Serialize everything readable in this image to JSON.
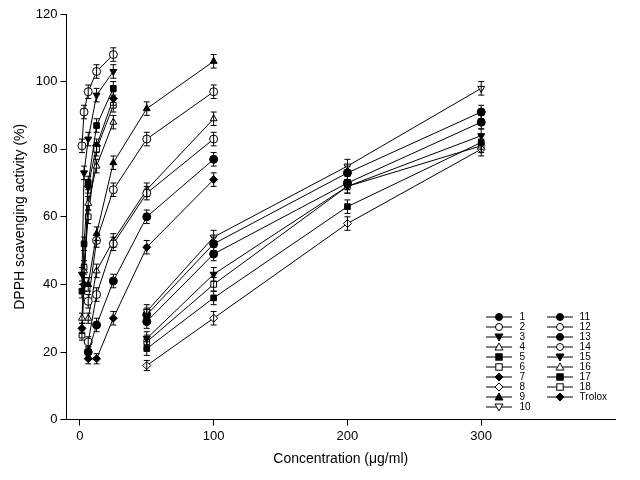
{
  "chart_data": {
    "type": "line",
    "x_label": "Concentration (μg/ml)",
    "y_label": "DPPH scavenging activity (%)",
    "xlim": [
      -10,
      400
    ],
    "xticks": [
      0,
      100,
      200,
      300
    ],
    "ylim": [
      0,
      120
    ],
    "yticks": [
      0,
      20,
      40,
      60,
      80,
      100,
      120
    ],
    "grid": false,
    "legend": "lower right",
    "series": [
      {
        "name": "1",
        "color": "#000000",
        "marker": "circle",
        "x": [
          6.25,
          12.5,
          25,
          50,
          100
        ],
        "values": [
          20,
          28,
          41,
          60,
          77
        ],
        "errors": [
          1.5,
          2,
          2,
          2,
          2
        ]
      },
      {
        "name": "2",
        "color": "#000000",
        "marker": "circle_open",
        "x": [
          1.5625,
          3.125,
          6.25,
          12.5,
          25
        ],
        "values": [
          81,
          91,
          97,
          103,
          108
        ],
        "errors": [
          2,
          2,
          2,
          2,
          2
        ]
      },
      {
        "name": "3",
        "color": "#000000",
        "marker": "triangle-down",
        "x": [
          1.5625,
          3.125,
          6.25,
          12.5,
          25
        ],
        "values": [
          43,
          73,
          83,
          96,
          103
        ],
        "errors": [
          2,
          2,
          2,
          2,
          2
        ]
      },
      {
        "name": "4",
        "color": "#000000",
        "marker": "triangle-up_open",
        "x": [
          1.5625,
          3.125,
          6.25,
          12.5,
          25
        ],
        "values": [
          30,
          44,
          64,
          75,
          88
        ],
        "errors": [
          1.5,
          2,
          2,
          2,
          2
        ]
      },
      {
        "name": "5",
        "color": "#000000",
        "marker": "square",
        "x": [
          1.5625,
          3.125,
          6.25,
          12.5,
          25
        ],
        "values": [
          38,
          52,
          70,
          87,
          98
        ],
        "errors": [
          2,
          2,
          2,
          2,
          2
        ]
      },
      {
        "name": "6",
        "color": "#000000",
        "marker": "square_open",
        "x": [
          1.5625,
          3.125,
          6.25,
          12.5,
          25
        ],
        "values": [
          25,
          45,
          60,
          80,
          93
        ],
        "errors": [
          1.5,
          2,
          2,
          2,
          2
        ]
      },
      {
        "name": "7",
        "color": "#000000",
        "marker": "diamond",
        "x": [
          1.5625,
          3.125,
          6.25,
          12.5,
          25
        ],
        "values": [
          27,
          40,
          69,
          81,
          95
        ],
        "errors": [
          1.5,
          2,
          2,
          2,
          2
        ]
      },
      {
        "name": "8",
        "color": "#000000",
        "marker": "diamond_open",
        "x": [
          50,
          100,
          200,
          300
        ],
        "values": [
          16,
          30,
          58,
          80
        ],
        "errors": [
          1.5,
          2,
          2,
          2
        ]
      },
      {
        "name": "9",
        "color": "#000000",
        "marker": "triangle-up",
        "x": [
          6.25,
          12.5,
          25,
          50,
          100
        ],
        "values": [
          40,
          55,
          76,
          92,
          106
        ],
        "errors": [
          2,
          2,
          2,
          2,
          2
        ]
      },
      {
        "name": "10",
        "color": "#000000",
        "marker": "triangle-down_open",
        "x": [
          50,
          100,
          200,
          300
        ],
        "values": [
          32,
          54,
          75,
          98
        ],
        "errors": [
          2,
          2,
          2,
          2
        ]
      },
      {
        "name": "11",
        "color": "#000000",
        "marker": "circle",
        "x": [
          50,
          100,
          200,
          300
        ],
        "values": [
          29,
          49,
          70,
          88
        ],
        "errors": [
          2,
          2,
          2,
          2
        ]
      },
      {
        "name": "12",
        "color": "#000000",
        "marker": "circle_open",
        "x": [
          6.25,
          12.5,
          25,
          50,
          100
        ],
        "values": [
          35,
          53,
          68,
          83,
          97
        ],
        "errors": [
          2,
          2,
          2,
          2,
          2
        ]
      },
      {
        "name": "13",
        "color": "#000000",
        "marker": "circle",
        "x": [
          50,
          100,
          200,
          300
        ],
        "values": [
          31,
          52,
          73,
          91
        ],
        "errors": [
          2,
          2,
          2,
          2
        ]
      },
      {
        "name": "14",
        "color": "#000000",
        "marker": "circle_open",
        "x": [
          6.25,
          12.5,
          25,
          50,
          100
        ],
        "values": [
          23,
          37,
          52,
          67,
          83
        ],
        "errors": [
          1.5,
          2,
          2,
          2,
          2
        ]
      },
      {
        "name": "15",
        "color": "#000000",
        "marker": "triangle-down",
        "x": [
          50,
          100,
          200,
          300
        ],
        "values": [
          24,
          43,
          69,
          84
        ],
        "errors": [
          2,
          2,
          2,
          2
        ]
      },
      {
        "name": "16",
        "color": "#000000",
        "marker": "triangle-up_open",
        "x": [
          6.25,
          12.5,
          25,
          50,
          100
        ],
        "values": [
          30,
          44,
          53,
          68,
          89
        ],
        "errors": [
          1.5,
          2,
          2,
          2,
          2
        ]
      },
      {
        "name": "17",
        "color": "#000000",
        "marker": "square",
        "x": [
          50,
          100,
          200,
          300
        ],
        "values": [
          21,
          36,
          63,
          82
        ],
        "errors": [
          2,
          2,
          2,
          2
        ]
      },
      {
        "name": "18",
        "color": "#000000",
        "marker": "square_open",
        "x": [
          50,
          100,
          200,
          300
        ],
        "values": [
          23,
          40,
          69,
          81
        ],
        "errors": [
          2,
          2,
          2,
          2
        ]
      },
      {
        "name": "Trolox",
        "color": "#000000",
        "marker": "diamond",
        "x": [
          6.25,
          12.5,
          25,
          50,
          100
        ],
        "values": [
          18,
          18,
          30,
          51,
          71
        ],
        "errors": [
          1.5,
          1.5,
          2,
          2,
          2
        ]
      }
    ]
  }
}
